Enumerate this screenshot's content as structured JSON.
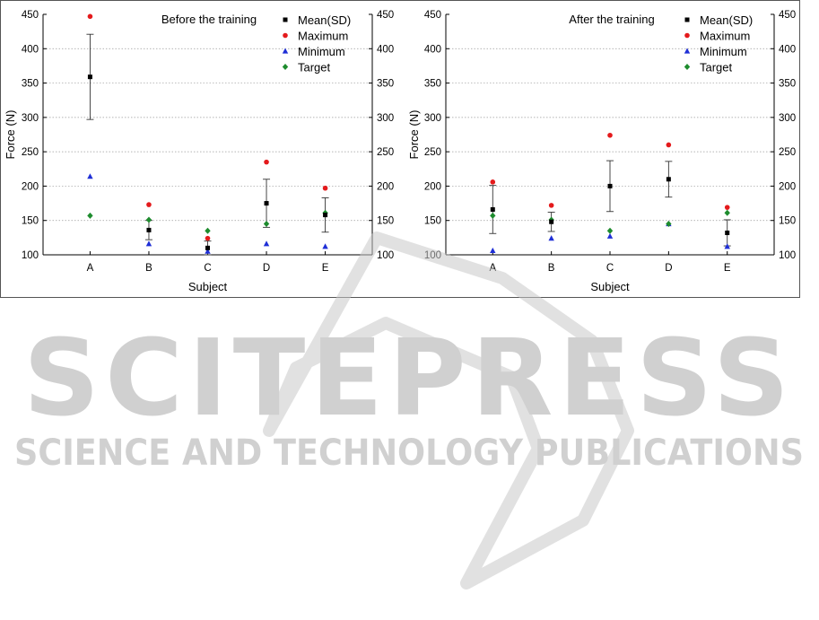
{
  "figure": {
    "watermark": {
      "title": "SCITEPRESS",
      "subtitle": "SCIENCE AND TECHNOLOGY PUBLICATIONS"
    }
  },
  "chart_data": [
    {
      "type": "scatter",
      "title": "Before the training",
      "xlabel": "Subject",
      "ylabel": "Force (N)",
      "categories": [
        "A",
        "B",
        "C",
        "D",
        "E"
      ],
      "ylim": [
        100,
        450
      ],
      "yticks": [
        "100",
        "150",
        "200",
        "250",
        "300",
        "350",
        "400",
        "450"
      ],
      "right_axis": true,
      "grid": true,
      "legend_position": "top-right",
      "series": [
        {
          "name": "Mean(SD)",
          "marker": "square",
          "color": "#000000",
          "values": [
            359,
            136,
            110,
            175,
            158
          ],
          "sd": [
            62,
            14,
            10,
            35,
            25
          ]
        },
        {
          "name": "Maximum",
          "marker": "circle",
          "color": "#e41a1c",
          "values": [
            447,
            173,
            124,
            235,
            197
          ]
        },
        {
          "name": "Minimum",
          "marker": "triangle",
          "color": "#1f2fd6",
          "values": [
            214,
            116,
            105,
            116,
            112
          ]
        },
        {
          "name": "Target",
          "marker": "diamond",
          "color": "#1e8c2e",
          "values": [
            157,
            151,
            135,
            145,
            161
          ]
        }
      ]
    },
    {
      "type": "scatter",
      "title": "After the training",
      "xlabel": "Subject",
      "ylabel": "Force (N)",
      "categories": [
        "A",
        "B",
        "C",
        "D",
        "E"
      ],
      "ylim": [
        100,
        450
      ],
      "yticks": [
        "100",
        "150",
        "200",
        "250",
        "300",
        "350",
        "400",
        "450"
      ],
      "right_axis": true,
      "grid": true,
      "legend_position": "top-right",
      "series": [
        {
          "name": "Mean(SD)",
          "marker": "square",
          "color": "#000000",
          "values": [
            166,
            148,
            200,
            210,
            132
          ],
          "sd": [
            35,
            14,
            37,
            26,
            19
          ]
        },
        {
          "name": "Maximum",
          "marker": "circle",
          "color": "#e41a1c",
          "values": [
            206,
            172,
            274,
            260,
            169
          ]
        },
        {
          "name": "Minimum",
          "marker": "triangle",
          "color": "#1f2fd6",
          "values": [
            106,
            124,
            127,
            145,
            112
          ]
        },
        {
          "name": "Target",
          "marker": "diamond",
          "color": "#1e8c2e",
          "values": [
            157,
            151,
            135,
            145,
            161
          ]
        }
      ]
    }
  ]
}
